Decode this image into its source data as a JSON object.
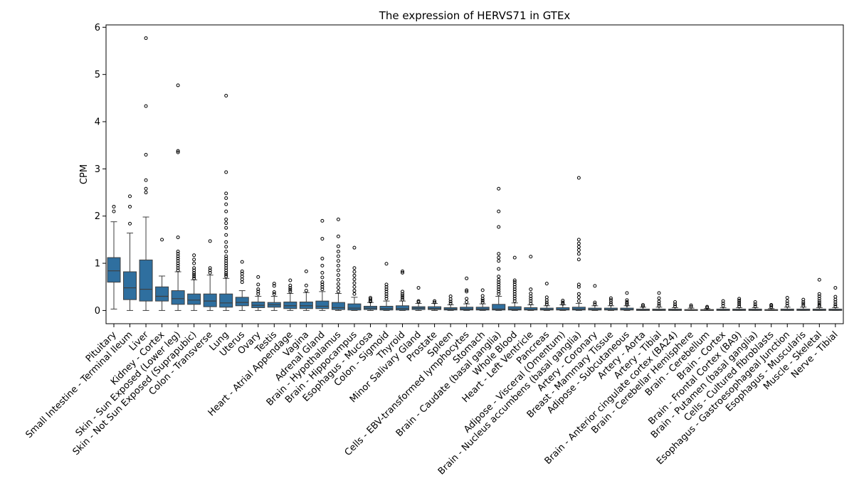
{
  "chart_data": {
    "type": "box",
    "title": "The expression of HERVS71 in GTEx",
    "xlabel": "",
    "ylabel": "CPM",
    "ylim": [
      -0.28,
      6.05
    ],
    "yticks": [
      0,
      1,
      2,
      3,
      4,
      5,
      6
    ],
    "grid": false,
    "box_color": "#2f6f9f",
    "categories": [
      {
        "name": "Pituitary",
        "whisker_low": 0.03,
        "q1": 0.6,
        "median": 0.84,
        "q3": 1.12,
        "whisker_high": 1.88,
        "outliers": [
          2.1,
          2.2
        ]
      },
      {
        "name": "Small Intestine - Terminal Ileum",
        "whisker_low": 0.0,
        "q1": 0.23,
        "median": 0.48,
        "q3": 0.82,
        "whisker_high": 1.64,
        "outliers": [
          1.84,
          2.2,
          2.42
        ]
      },
      {
        "name": "Liver",
        "whisker_low": 0.0,
        "q1": 0.2,
        "median": 0.45,
        "q3": 1.07,
        "whisker_high": 1.98,
        "outliers": [
          2.5,
          2.58,
          2.76,
          3.3,
          4.33,
          5.77
        ]
      },
      {
        "name": "Kidney - Cortex",
        "whisker_low": 0.0,
        "q1": 0.2,
        "median": 0.3,
        "q3": 0.5,
        "whisker_high": 0.73,
        "outliers": [
          1.5
        ]
      },
      {
        "name": "Skin - Sun Exposed (Lower leg)",
        "whisker_low": 0.0,
        "q1": 0.13,
        "median": 0.25,
        "q3": 0.42,
        "whisker_high": 0.82,
        "outliers": [
          0.85,
          0.9,
          0.95,
          1.0,
          1.05,
          1.1,
          1.15,
          1.2,
          1.25,
          1.55,
          3.35,
          3.38,
          4.77
        ]
      },
      {
        "name": "Skin - Not Sun Exposed (Suprapubic)",
        "whisker_low": 0.0,
        "q1": 0.13,
        "median": 0.22,
        "q3": 0.35,
        "whisker_high": 0.65,
        "outliers": [
          0.68,
          0.72,
          0.76,
          0.8,
          0.85,
          0.9,
          1.0,
          1.08,
          1.17
        ]
      },
      {
        "name": "Colon - Transverse",
        "whisker_low": 0.0,
        "q1": 0.08,
        "median": 0.2,
        "q3": 0.35,
        "whisker_high": 0.75,
        "outliers": [
          0.8,
          0.85,
          0.9,
          1.47
        ]
      },
      {
        "name": "Lung",
        "whisker_low": 0.0,
        "q1": 0.07,
        "median": 0.16,
        "q3": 0.35,
        "whisker_high": 0.68,
        "outliers": [
          0.72,
          0.76,
          0.8,
          0.85,
          0.9,
          0.95,
          1.0,
          1.05,
          1.1,
          1.15,
          1.25,
          1.35,
          1.45,
          1.6,
          1.75,
          1.85,
          1.93,
          2.1,
          2.25,
          2.38,
          2.48,
          2.93,
          4.55
        ]
      },
      {
        "name": "Uterus",
        "whisker_low": 0.0,
        "q1": 0.1,
        "median": 0.17,
        "q3": 0.28,
        "whisker_high": 0.42,
        "outliers": [
          0.6,
          0.66,
          0.72,
          0.78,
          0.83,
          1.03
        ]
      },
      {
        "name": "Ovary",
        "whisker_low": 0.0,
        "q1": 0.06,
        "median": 0.11,
        "q3": 0.18,
        "whisker_high": 0.3,
        "outliers": [
          0.35,
          0.4,
          0.45,
          0.55,
          0.71
        ]
      },
      {
        "name": "Testis",
        "whisker_low": 0.0,
        "q1": 0.07,
        "median": 0.12,
        "q3": 0.17,
        "whisker_high": 0.3,
        "outliers": [
          0.35,
          0.39,
          0.52,
          0.57
        ]
      },
      {
        "name": "Heart - Atrial Appendage",
        "whisker_low": 0.0,
        "q1": 0.04,
        "median": 0.1,
        "q3": 0.18,
        "whisker_high": 0.36,
        "outliers": [
          0.4,
          0.44,
          0.48,
          0.53,
          0.64
        ]
      },
      {
        "name": "Vagina",
        "whisker_low": 0.0,
        "q1": 0.04,
        "median": 0.1,
        "q3": 0.18,
        "whisker_high": 0.38,
        "outliers": [
          0.42,
          0.53,
          0.83
        ]
      },
      {
        "name": "Adrenal Gland",
        "whisker_low": 0.0,
        "q1": 0.04,
        "median": 0.09,
        "q3": 0.2,
        "whisker_high": 0.4,
        "outliers": [
          0.45,
          0.5,
          0.55,
          0.6,
          0.7,
          0.8,
          0.95,
          1.1,
          1.52,
          1.9
        ]
      },
      {
        "name": "Brain - Hypothalamus",
        "whisker_low": 0.0,
        "q1": 0.02,
        "median": 0.06,
        "q3": 0.17,
        "whisker_high": 0.36,
        "outliers": [
          0.4,
          0.48,
          0.56,
          0.65,
          0.75,
          0.85,
          0.95,
          1.05,
          1.15,
          1.25,
          1.36,
          1.57,
          1.93
        ]
      },
      {
        "name": "Brain - Hippocampus",
        "whisker_low": 0.0,
        "q1": 0.01,
        "median": 0.05,
        "q3": 0.14,
        "whisker_high": 0.28,
        "outliers": [
          0.35,
          0.42,
          0.5,
          0.58,
          0.66,
          0.74,
          0.82,
          0.9,
          1.33
        ]
      },
      {
        "name": "Esophagus - Mucosa",
        "whisker_low": 0.0,
        "q1": 0.02,
        "median": 0.05,
        "q3": 0.09,
        "whisker_high": 0.17,
        "outliers": [
          0.19,
          0.21,
          0.24,
          0.27
        ]
      },
      {
        "name": "Colon - Sigmoid",
        "whisker_low": 0.0,
        "q1": 0.01,
        "median": 0.04,
        "q3": 0.09,
        "whisker_high": 0.2,
        "outliers": [
          0.25,
          0.3,
          0.35,
          0.4,
          0.45,
          0.5,
          0.55,
          0.99
        ]
      },
      {
        "name": "Thyroid",
        "whisker_low": 0.0,
        "q1": 0.01,
        "median": 0.04,
        "q3": 0.1,
        "whisker_high": 0.2,
        "outliers": [
          0.23,
          0.27,
          0.31,
          0.35,
          0.4,
          0.8,
          0.83
        ]
      },
      {
        "name": "Minor Salivary Gland",
        "whisker_low": 0.0,
        "q1": 0.02,
        "median": 0.05,
        "q3": 0.08,
        "whisker_high": 0.15,
        "outliers": [
          0.18,
          0.2,
          0.48
        ]
      },
      {
        "name": "Prostate",
        "whisker_low": 0.0,
        "q1": 0.02,
        "median": 0.04,
        "q3": 0.08,
        "whisker_high": 0.15,
        "outliers": [
          0.17,
          0.2
        ]
      },
      {
        "name": "Spleen",
        "whisker_low": 0.0,
        "q1": 0.01,
        "median": 0.03,
        "q3": 0.06,
        "whisker_high": 0.12,
        "outliers": [
          0.15,
          0.19,
          0.24,
          0.3
        ]
      },
      {
        "name": "Cells - EBV-transformed lymphocytes",
        "whisker_low": 0.0,
        "q1": 0.01,
        "median": 0.03,
        "q3": 0.07,
        "whisker_high": 0.14,
        "outliers": [
          0.18,
          0.25,
          0.4,
          0.43,
          0.68
        ]
      },
      {
        "name": "Stomach",
        "whisker_low": 0.0,
        "q1": 0.01,
        "median": 0.03,
        "q3": 0.07,
        "whisker_high": 0.14,
        "outliers": [
          0.17,
          0.21,
          0.25,
          0.31,
          0.43
        ]
      },
      {
        "name": "Brain - Caudate (basal ganglia)",
        "whisker_low": 0.0,
        "q1": 0.01,
        "median": 0.03,
        "q3": 0.13,
        "whisker_high": 0.3,
        "outliers": [
          0.35,
          0.4,
          0.45,
          0.5,
          0.55,
          0.6,
          0.65,
          0.72,
          0.88,
          1.05,
          1.12,
          1.2,
          1.77,
          2.1,
          2.58
        ]
      },
      {
        "name": "Whole Blood",
        "whisker_low": 0.0,
        "q1": 0.01,
        "median": 0.03,
        "q3": 0.08,
        "whisker_high": 0.16,
        "outliers": [
          0.2,
          0.25,
          0.3,
          0.35,
          0.4,
          0.45,
          0.5,
          0.55,
          0.6,
          0.64,
          1.12
        ]
      },
      {
        "name": "Heart - Left Ventricle",
        "whisker_low": 0.0,
        "q1": 0.01,
        "median": 0.02,
        "q3": 0.06,
        "whisker_high": 0.12,
        "outliers": [
          0.15,
          0.2,
          0.25,
          0.3,
          0.36,
          0.45,
          1.14
        ]
      },
      {
        "name": "Pancreas",
        "whisker_low": 0.0,
        "q1": 0.01,
        "median": 0.02,
        "q3": 0.05,
        "whisker_high": 0.1,
        "outliers": [
          0.13,
          0.17,
          0.22,
          0.28,
          0.57
        ]
      },
      {
        "name": "Adipose - Visceral (Omentum)",
        "whisker_low": 0.0,
        "q1": 0.01,
        "median": 0.02,
        "q3": 0.06,
        "whisker_high": 0.12,
        "outliers": [
          0.14,
          0.17,
          0.21
        ]
      },
      {
        "name": "Brain - Nucleus accumbens (basal ganglia)",
        "whisker_low": 0.0,
        "q1": 0.01,
        "median": 0.03,
        "q3": 0.07,
        "whisker_high": 0.15,
        "outliers": [
          0.2,
          0.28,
          0.35,
          0.5,
          0.55,
          1.08,
          1.2,
          1.28,
          1.35,
          1.42,
          1.5,
          2.81
        ]
      },
      {
        "name": "Artery - Coronary",
        "whisker_low": 0.0,
        "q1": 0.01,
        "median": 0.02,
        "q3": 0.05,
        "whisker_high": 0.1,
        "outliers": [
          0.13,
          0.17,
          0.52
        ]
      },
      {
        "name": "Breast - Mammary Tissue",
        "whisker_low": 0.0,
        "q1": 0.01,
        "median": 0.02,
        "q3": 0.05,
        "whisker_high": 0.1,
        "outliers": [
          0.13,
          0.17,
          0.22,
          0.26
        ]
      },
      {
        "name": "Adipose - Subcutaneous",
        "whisker_low": 0.0,
        "q1": 0.01,
        "median": 0.02,
        "q3": 0.05,
        "whisker_high": 0.1,
        "outliers": [
          0.12,
          0.15,
          0.18,
          0.22,
          0.37
        ]
      },
      {
        "name": "Artery - Aorta",
        "whisker_low": 0.0,
        "q1": 0.0,
        "median": 0.01,
        "q3": 0.03,
        "whisker_high": 0.07,
        "outliers": [
          0.09,
          0.12
        ]
      },
      {
        "name": "Artery - Tibial",
        "whisker_low": 0.0,
        "q1": 0.0,
        "median": 0.01,
        "q3": 0.03,
        "whisker_high": 0.07,
        "outliers": [
          0.1,
          0.14,
          0.19,
          0.26,
          0.37
        ]
      },
      {
        "name": "Brain - Anterior cingulate cortex (BA24)",
        "whisker_low": 0.0,
        "q1": 0.0,
        "median": 0.01,
        "q3": 0.03,
        "whisker_high": 0.06,
        "outliers": [
          0.09,
          0.13,
          0.18
        ]
      },
      {
        "name": "Brain - Cerebellar Hemisphere",
        "whisker_low": 0.0,
        "q1": 0.0,
        "median": 0.01,
        "q3": 0.02,
        "whisker_high": 0.05,
        "outliers": [
          0.08,
          0.11
        ]
      },
      {
        "name": "Brain - Cerebellum",
        "whisker_low": 0.0,
        "q1": 0.0,
        "median": 0.01,
        "q3": 0.02,
        "whisker_high": 0.04,
        "outliers": [
          0.06,
          0.08
        ]
      },
      {
        "name": "Brain - Cortex",
        "whisker_low": 0.0,
        "q1": 0.0,
        "median": 0.01,
        "q3": 0.03,
        "whisker_high": 0.06,
        "outliers": [
          0.1,
          0.15,
          0.2
        ]
      },
      {
        "name": "Brain - Frontal Cortex (BA9)",
        "whisker_low": 0.0,
        "q1": 0.0,
        "median": 0.01,
        "q3": 0.03,
        "whisker_high": 0.06,
        "outliers": [
          0.09,
          0.13,
          0.17,
          0.21,
          0.25
        ]
      },
      {
        "name": "Brain - Putamen (basal ganglia)",
        "whisker_low": 0.0,
        "q1": 0.0,
        "median": 0.01,
        "q3": 0.03,
        "whisker_high": 0.06,
        "outliers": [
          0.09,
          0.13,
          0.18
        ]
      },
      {
        "name": "Cells - Cultured fibroblasts",
        "whisker_low": 0.0,
        "q1": 0.0,
        "median": 0.01,
        "q3": 0.02,
        "whisker_high": 0.04,
        "outliers": [
          0.07,
          0.1,
          0.12
        ]
      },
      {
        "name": "Esophagus - Gastroesophageal Junction",
        "whisker_low": 0.0,
        "q1": 0.0,
        "median": 0.01,
        "q3": 0.03,
        "whisker_high": 0.07,
        "outliers": [
          0.1,
          0.15,
          0.2,
          0.27
        ]
      },
      {
        "name": "Esophagus - Muscularis",
        "whisker_low": 0.0,
        "q1": 0.0,
        "median": 0.01,
        "q3": 0.03,
        "whisker_high": 0.07,
        "outliers": [
          0.1,
          0.14,
          0.18,
          0.23
        ]
      },
      {
        "name": "Muscle - Skeletal",
        "whisker_low": 0.0,
        "q1": 0.0,
        "median": 0.01,
        "q3": 0.03,
        "whisker_high": 0.06,
        "outliers": [
          0.09,
          0.12,
          0.16,
          0.2,
          0.25,
          0.3,
          0.35,
          0.65
        ]
      },
      {
        "name": "Nerve - Tibial",
        "whisker_low": 0.0,
        "q1": 0.0,
        "median": 0.01,
        "q3": 0.03,
        "whisker_high": 0.06,
        "outliers": [
          0.09,
          0.13,
          0.18,
          0.23,
          0.29,
          0.48
        ]
      }
    ]
  }
}
